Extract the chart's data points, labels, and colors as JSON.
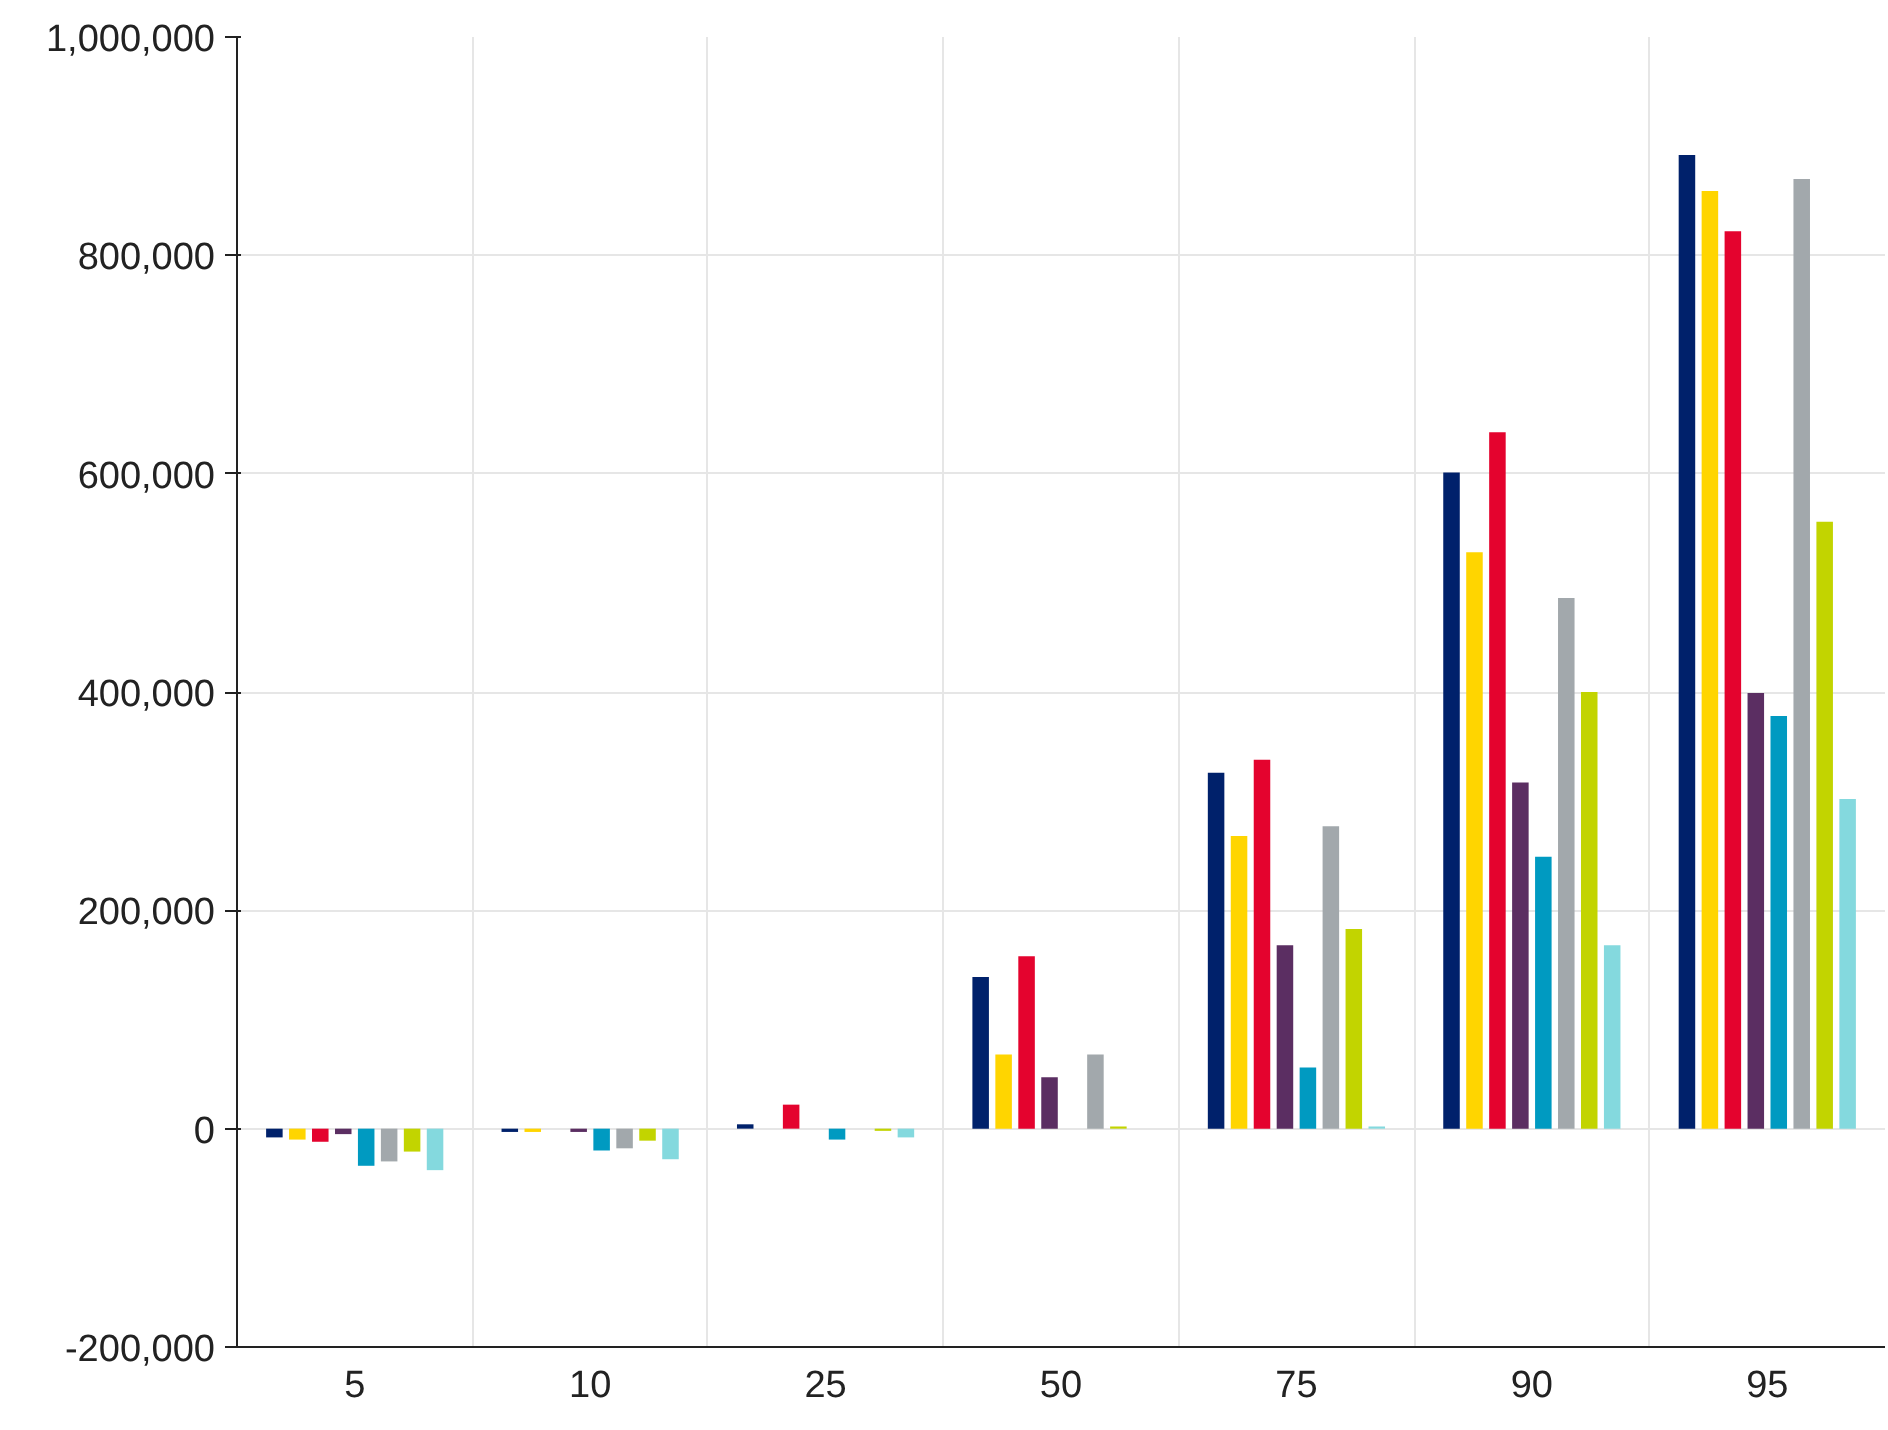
{
  "chart_data": {
    "type": "bar",
    "categories": [
      "5",
      "10",
      "25",
      "50",
      "75",
      "90",
      "95"
    ],
    "series": [
      {
        "color": "#00216b",
        "values": [
          -8000,
          -3000,
          4000,
          139000,
          326000,
          601000,
          892000
        ]
      },
      {
        "color": "#ffd500",
        "values": [
          -10000,
          -3000,
          0,
          68000,
          268000,
          528000,
          859000
        ]
      },
      {
        "color": "#e4032e",
        "values": [
          -12000,
          0,
          22000,
          158000,
          338000,
          638000,
          822000
        ]
      },
      {
        "color": "#5b2e62",
        "values": [
          -5000,
          -3000,
          0,
          47000,
          168000,
          317000,
          399000
        ]
      },
      {
        "color": "#009ac1",
        "values": [
          -34000,
          -20000,
          -10000,
          0,
          56000,
          249000,
          378000
        ]
      },
      {
        "color": "#a2a8ac",
        "values": [
          -30000,
          -18000,
          0,
          68000,
          277000,
          486000,
          870000
        ]
      },
      {
        "color": "#c2d400",
        "values": [
          -21000,
          -11000,
          -2000,
          2000,
          183000,
          400000,
          556000
        ]
      },
      {
        "color": "#84d9de",
        "values": [
          -38000,
          -28000,
          -8000,
          0,
          2000,
          168000,
          302000
        ]
      }
    ],
    "ylim": [
      -200000,
      1000000
    ],
    "yticks": [
      {
        "value": -200000,
        "label": "-200,000"
      },
      {
        "value": 0,
        "label": "0"
      },
      {
        "value": 200000,
        "label": "200,000"
      },
      {
        "value": 400000,
        "label": "400,000"
      },
      {
        "value": 600000,
        "label": "600,000"
      },
      {
        "value": 800000,
        "label": "800,000"
      },
      {
        "value": 1000000,
        "label": "1,000,000"
      }
    ],
    "grid": true
  }
}
